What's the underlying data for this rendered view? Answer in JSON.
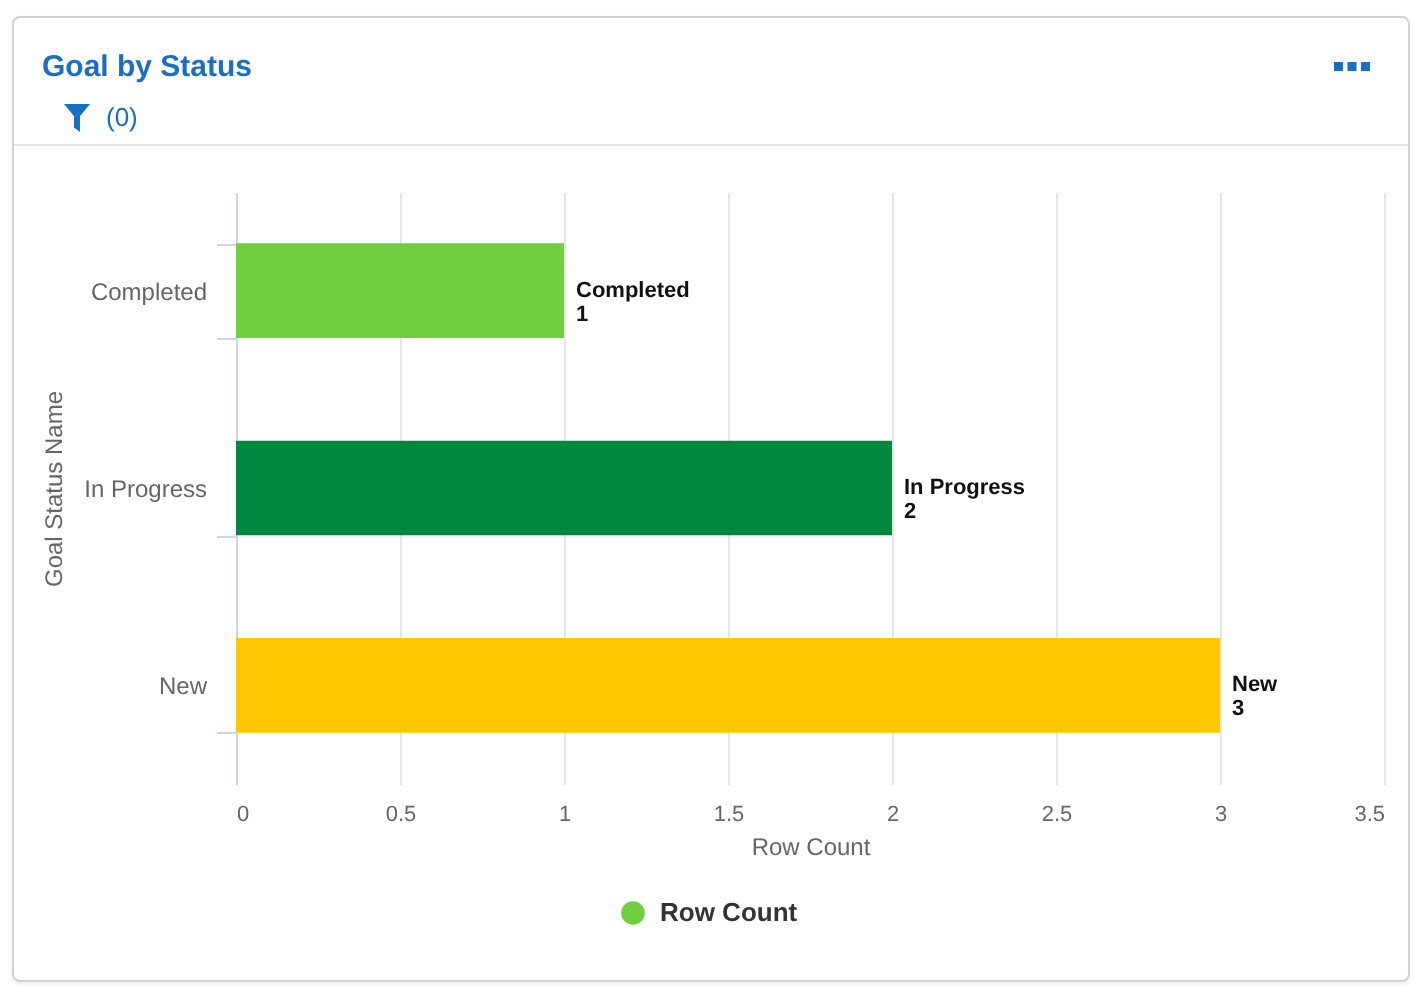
{
  "chart_data": {
    "type": "bar",
    "orientation": "horizontal",
    "title": "Goal by Status",
    "annotations": [
      "(0)"
    ],
    "xlabel": "Row Count",
    "ylabel": "Goal Status Name",
    "categories": [
      "Completed",
      "In Progress",
      "New"
    ],
    "series": [
      {
        "name": "Row Count",
        "color": "#71cf3f",
        "colors": [
          "#71cf3f",
          "#00873f",
          "#ffc700"
        ],
        "values": [
          1,
          2,
          3
        ]
      }
    ],
    "xlim": [
      0,
      3.5
    ],
    "xticks": [
      0,
      0.5,
      1,
      1.5,
      2,
      2.5,
      3,
      3.5
    ],
    "grid": "x",
    "legend": "bottom",
    "data_labels": true
  }
}
